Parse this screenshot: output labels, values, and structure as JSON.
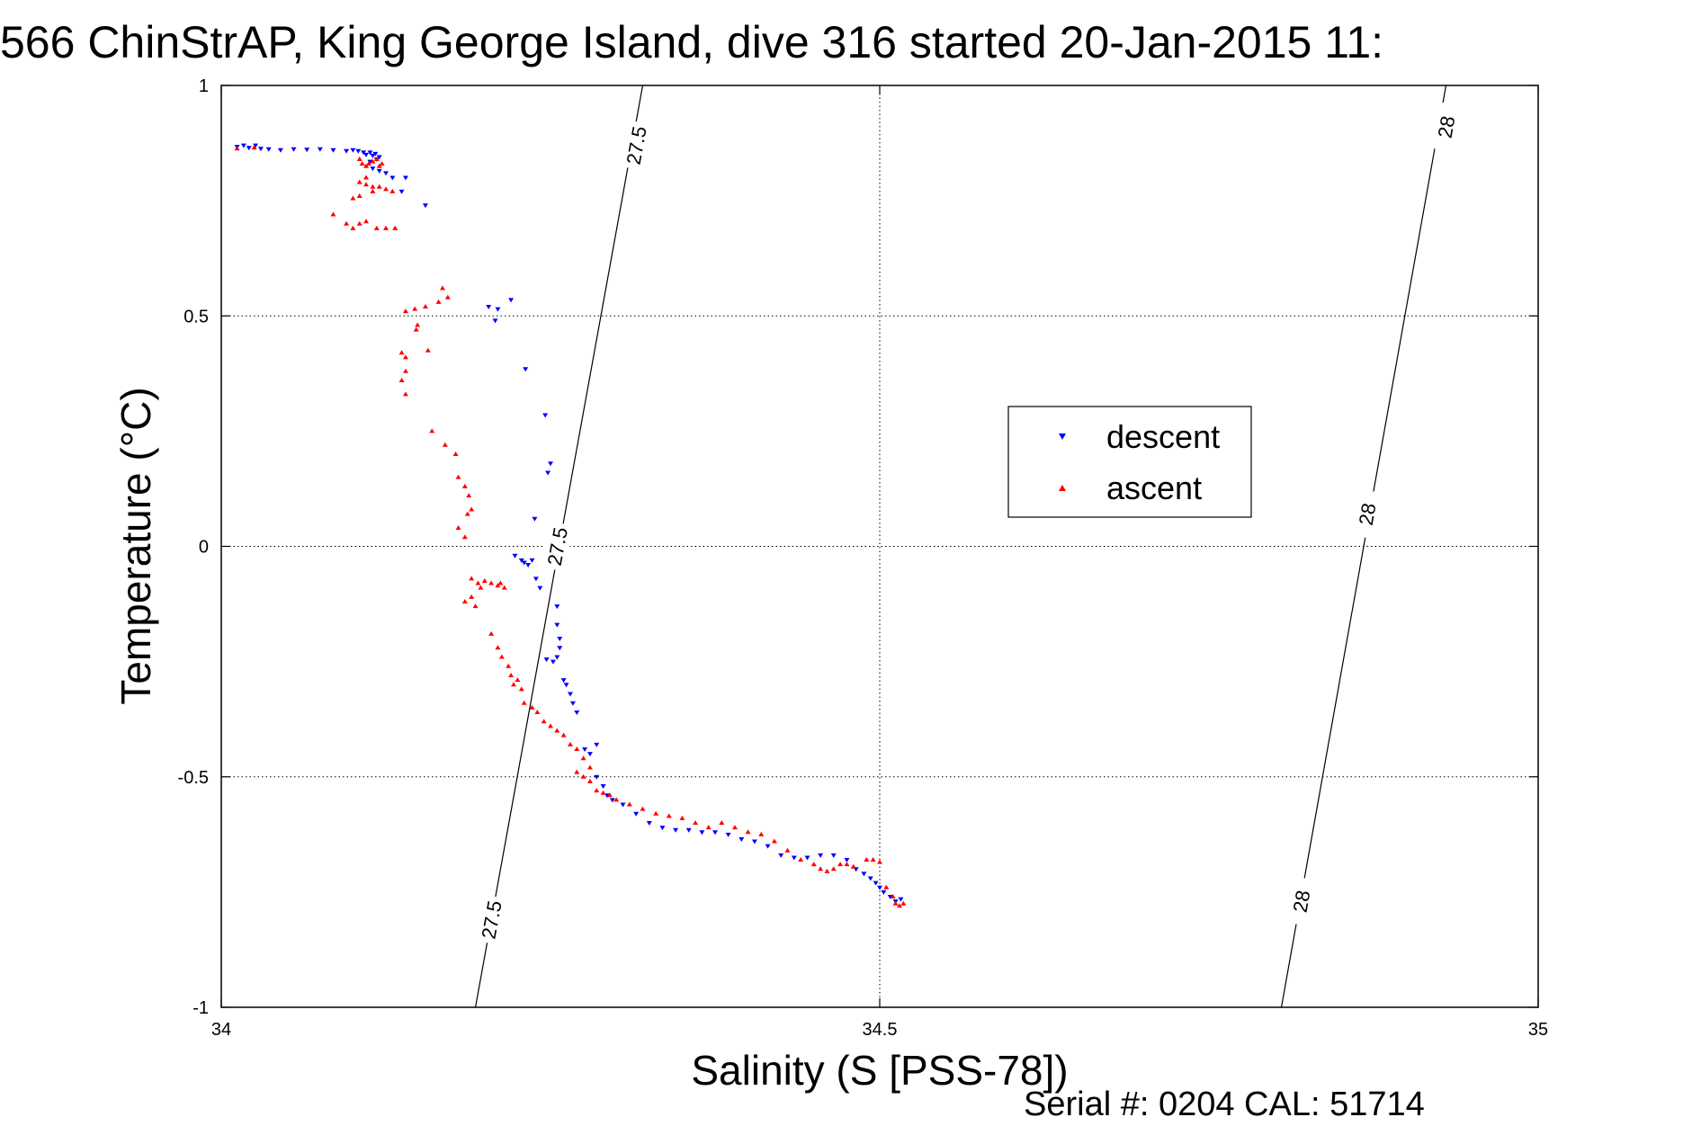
{
  "title": "566 ChinStrAP, King George Island, dive 316 started 20-Jan-2015 11:",
  "footer": "Serial #: 0204  CAL: 51714",
  "chart_data": {
    "type": "scatter",
    "title": "566 ChinStrAP, King George Island, dive 316 started 20-Jan-2015 11:",
    "xlabel": "Salinity (S [PSS-78])",
    "ylabel": "Temperature (°C)",
    "xlim": [
      34,
      35
    ],
    "ylim": [
      -1,
      1
    ],
    "x_ticks": [
      34,
      34.5,
      35
    ],
    "x_tick_labels": [
      "34",
      "34.5",
      "35"
    ],
    "y_ticks": [
      -1,
      -0.5,
      0,
      0.5,
      1
    ],
    "y_tick_labels": [
      "-1",
      "-0.5",
      "0",
      "0.5",
      "1"
    ],
    "grid": true,
    "legend_position": "center-right",
    "colors": {
      "descent": "#0000ff",
      "ascent": "#ff0000",
      "isopycnal": "#000000"
    },
    "isopycnals": [
      {
        "label": "27.5",
        "points": [
          [
            34.193,
            -1
          ],
          [
            34.32,
            1
          ]
        ],
        "label_positions": [
          [
            34.205,
            -0.81
          ],
          [
            34.255,
            0.0
          ],
          [
            34.315,
            0.87
          ]
        ]
      },
      {
        "label": "28",
        "points": [
          [
            34.805,
            -1
          ],
          [
            34.93,
            1
          ]
        ],
        "label_positions": [
          [
            34.82,
            -0.77
          ],
          [
            34.87,
            0.07
          ],
          [
            34.93,
            0.91
          ]
        ]
      }
    ],
    "series": [
      {
        "name": "descent",
        "marker": "triangle-down",
        "points": [
          [
            34.012,
            0.867
          ],
          [
            34.017,
            0.87
          ],
          [
            34.021,
            0.865
          ],
          [
            34.026,
            0.87
          ],
          [
            34.03,
            0.863
          ],
          [
            34.036,
            0.862
          ],
          [
            34.045,
            0.86
          ],
          [
            34.055,
            0.862
          ],
          [
            34.065,
            0.861
          ],
          [
            34.075,
            0.862
          ],
          [
            34.085,
            0.86
          ],
          [
            34.095,
            0.858
          ],
          [
            34.1,
            0.86
          ],
          [
            34.104,
            0.858
          ],
          [
            34.108,
            0.855
          ],
          [
            34.11,
            0.85
          ],
          [
            34.113,
            0.855
          ],
          [
            34.115,
            0.848
          ],
          [
            34.117,
            0.852
          ],
          [
            34.12,
            0.845
          ],
          [
            34.118,
            0.84
          ],
          [
            34.113,
            0.835
          ],
          [
            34.115,
            0.82
          ],
          [
            34.12,
            0.815
          ],
          [
            34.125,
            0.81
          ],
          [
            34.13,
            0.8
          ],
          [
            34.137,
            0.77
          ],
          [
            34.14,
            0.8
          ],
          [
            34.155,
            0.74
          ],
          [
            34.203,
            0.52
          ],
          [
            34.21,
            0.515
          ],
          [
            34.22,
            0.535
          ],
          [
            34.208,
            0.49
          ],
          [
            34.231,
            0.385
          ],
          [
            34.246,
            0.285
          ],
          [
            34.25,
            0.18
          ],
          [
            34.248,
            0.16
          ],
          [
            34.238,
            0.06
          ],
          [
            34.223,
            -0.02
          ],
          [
            34.228,
            -0.03
          ],
          [
            34.23,
            -0.035
          ],
          [
            34.233,
            -0.04
          ],
          [
            34.236,
            -0.03
          ],
          [
            34.239,
            -0.07
          ],
          [
            34.242,
            -0.09
          ],
          [
            34.255,
            -0.13
          ],
          [
            34.255,
            -0.17
          ],
          [
            34.257,
            -0.2
          ],
          [
            34.252,
            -0.25
          ],
          [
            34.255,
            -0.24
          ],
          [
            34.257,
            -0.22
          ],
          [
            34.247,
            -0.245
          ],
          [
            34.26,
            -0.29
          ],
          [
            34.262,
            -0.3
          ],
          [
            34.265,
            -0.32
          ],
          [
            34.267,
            -0.34
          ],
          [
            34.27,
            -0.36
          ],
          [
            34.276,
            -0.44
          ],
          [
            34.28,
            -0.45
          ],
          [
            34.285,
            -0.43
          ],
          [
            34.285,
            -0.5
          ],
          [
            34.29,
            -0.52
          ],
          [
            34.293,
            -0.54
          ],
          [
            34.297,
            -0.55
          ],
          [
            34.305,
            -0.56
          ],
          [
            34.315,
            -0.58
          ],
          [
            34.325,
            -0.6
          ],
          [
            34.335,
            -0.61
          ],
          [
            34.345,
            -0.615
          ],
          [
            34.355,
            -0.615
          ],
          [
            34.365,
            -0.62
          ],
          [
            34.375,
            -0.62
          ],
          [
            34.385,
            -0.625
          ],
          [
            34.395,
            -0.635
          ],
          [
            34.405,
            -0.64
          ],
          [
            34.415,
            -0.65
          ],
          [
            34.425,
            -0.67
          ],
          [
            34.435,
            -0.675
          ],
          [
            34.445,
            -0.675
          ],
          [
            34.455,
            -0.67
          ],
          [
            34.465,
            -0.67
          ],
          [
            34.475,
            -0.68
          ],
          [
            34.482,
            -0.7
          ],
          [
            34.488,
            -0.71
          ],
          [
            34.493,
            -0.72
          ],
          [
            34.497,
            -0.73
          ],
          [
            34.5,
            -0.74
          ],
          [
            34.503,
            -0.75
          ],
          [
            34.508,
            -0.76
          ],
          [
            34.512,
            -0.77
          ],
          [
            34.516,
            -0.765
          ]
        ]
      },
      {
        "name": "ascent",
        "marker": "triangle-up",
        "points": [
          [
            34.012,
            0.863
          ],
          [
            34.025,
            0.865
          ],
          [
            34.085,
            0.72
          ],
          [
            34.105,
            0.84
          ],
          [
            34.107,
            0.83
          ],
          [
            34.11,
            0.825
          ],
          [
            34.112,
            0.83
          ],
          [
            34.115,
            0.835
          ],
          [
            34.118,
            0.84
          ],
          [
            34.12,
            0.825
          ],
          [
            34.122,
            0.83
          ],
          [
            34.11,
            0.8
          ],
          [
            34.105,
            0.79
          ],
          [
            34.11,
            0.785
          ],
          [
            34.115,
            0.78
          ],
          [
            34.12,
            0.78
          ],
          [
            34.125,
            0.775
          ],
          [
            34.13,
            0.77
          ],
          [
            34.115,
            0.77
          ],
          [
            34.105,
            0.76
          ],
          [
            34.1,
            0.755
          ],
          [
            34.095,
            0.7
          ],
          [
            34.1,
            0.69
          ],
          [
            34.105,
            0.7
          ],
          [
            34.11,
            0.705
          ],
          [
            34.118,
            0.69
          ],
          [
            34.125,
            0.69
          ],
          [
            34.132,
            0.69
          ],
          [
            34.14,
            0.51
          ],
          [
            34.147,
            0.515
          ],
          [
            34.155,
            0.52
          ],
          [
            34.165,
            0.53
          ],
          [
            34.172,
            0.54
          ],
          [
            34.168,
            0.56
          ],
          [
            34.149,
            0.48
          ],
          [
            34.148,
            0.47
          ],
          [
            34.137,
            0.42
          ],
          [
            34.14,
            0.41
          ],
          [
            34.157,
            0.425
          ],
          [
            34.14,
            0.38
          ],
          [
            34.137,
            0.36
          ],
          [
            34.14,
            0.33
          ],
          [
            34.16,
            0.25
          ],
          [
            34.17,
            0.22
          ],
          [
            34.178,
            0.2
          ],
          [
            34.18,
            0.15
          ],
          [
            34.185,
            0.13
          ],
          [
            34.188,
            0.11
          ],
          [
            34.19,
            0.08
          ],
          [
            34.187,
            0.07
          ],
          [
            34.18,
            0.04
          ],
          [
            34.185,
            0.02
          ],
          [
            34.19,
            -0.07
          ],
          [
            34.195,
            -0.08
          ],
          [
            34.2,
            -0.075
          ],
          [
            34.205,
            -0.08
          ],
          [
            34.21,
            -0.085
          ],
          [
            34.197,
            -0.09
          ],
          [
            34.19,
            -0.11
          ],
          [
            34.185,
            -0.12
          ],
          [
            34.193,
            -0.13
          ],
          [
            34.212,
            -0.08
          ],
          [
            34.215,
            -0.09
          ],
          [
            34.205,
            -0.19
          ],
          [
            34.21,
            -0.22
          ],
          [
            34.213,
            -0.24
          ],
          [
            34.218,
            -0.26
          ],
          [
            34.22,
            -0.28
          ],
          [
            34.222,
            -0.3
          ],
          [
            34.225,
            -0.29
          ],
          [
            34.228,
            -0.31
          ],
          [
            34.23,
            -0.34
          ],
          [
            34.236,
            -0.35
          ],
          [
            34.24,
            -0.36
          ],
          [
            34.245,
            -0.38
          ],
          [
            34.25,
            -0.39
          ],
          [
            34.255,
            -0.4
          ],
          [
            34.26,
            -0.41
          ],
          [
            34.265,
            -0.43
          ],
          [
            34.27,
            -0.44
          ],
          [
            34.275,
            -0.46
          ],
          [
            34.28,
            -0.48
          ],
          [
            34.27,
            -0.49
          ],
          [
            34.275,
            -0.5
          ],
          [
            34.28,
            -0.51
          ],
          [
            34.285,
            -0.53
          ],
          [
            34.29,
            -0.535
          ],
          [
            34.295,
            -0.54
          ],
          [
            34.3,
            -0.55
          ],
          [
            34.31,
            -0.56
          ],
          [
            34.32,
            -0.57
          ],
          [
            34.33,
            -0.58
          ],
          [
            34.34,
            -0.585
          ],
          [
            34.35,
            -0.59
          ],
          [
            34.36,
            -0.6
          ],
          [
            34.37,
            -0.61
          ],
          [
            34.38,
            -0.6
          ],
          [
            34.39,
            -0.61
          ],
          [
            34.4,
            -0.62
          ],
          [
            34.41,
            -0.625
          ],
          [
            34.42,
            -0.64
          ],
          [
            34.43,
            -0.66
          ],
          [
            34.44,
            -0.68
          ],
          [
            34.45,
            -0.69
          ],
          [
            34.455,
            -0.7
          ],
          [
            34.46,
            -0.705
          ],
          [
            34.465,
            -0.7
          ],
          [
            34.47,
            -0.69
          ],
          [
            34.475,
            -0.69
          ],
          [
            34.48,
            -0.695
          ],
          [
            34.49,
            -0.68
          ],
          [
            34.495,
            -0.68
          ],
          [
            34.5,
            -0.685
          ],
          [
            34.505,
            -0.74
          ],
          [
            34.51,
            -0.76
          ],
          [
            34.512,
            -0.775
          ],
          [
            34.515,
            -0.78
          ],
          [
            34.518,
            -0.775
          ]
        ]
      }
    ]
  }
}
